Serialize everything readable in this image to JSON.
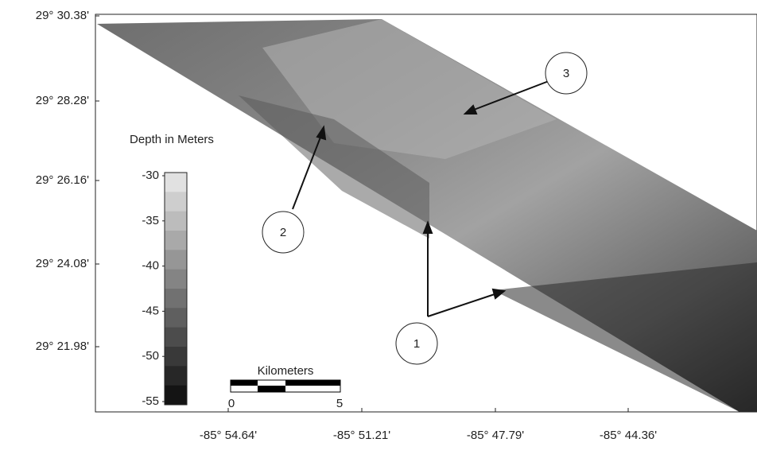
{
  "axes": {
    "latitude_labels": [
      "29° 30.38'",
      "29° 28.28'",
      "29° 26.16'",
      "29° 24.08'",
      "29° 21.98'"
    ],
    "longitude_labels": [
      "-85° 54.64'",
      "-85° 51.21'",
      "-85° 47.79'",
      "-85° 44.36'"
    ]
  },
  "legend": {
    "title": "Depth in Meters",
    "ticks": [
      -30,
      -35,
      -40,
      -45,
      -50,
      -55
    ]
  },
  "scale_bar": {
    "title": "Kilometers",
    "ticks": [
      0,
      5
    ]
  },
  "callouts": [
    "1",
    "2",
    "3"
  ]
}
